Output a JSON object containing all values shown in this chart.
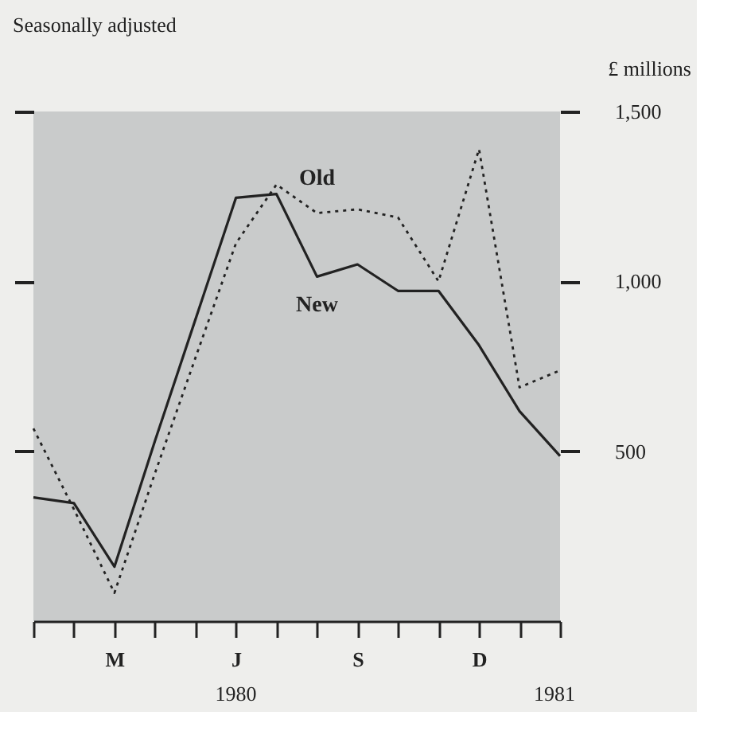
{
  "chart_data": {
    "type": "line",
    "title": "Seasonally adjusted",
    "ylabel": "£ millions",
    "categories": [
      null,
      null,
      "M",
      null,
      null,
      "J",
      null,
      null,
      "S",
      null,
      null,
      "D",
      null,
      null
    ],
    "ylim": [
      0,
      1500
    ],
    "yticks": [
      {
        "value": 500,
        "label": "500"
      },
      {
        "value": 1000,
        "label": "1,000"
      },
      {
        "value": 1500,
        "label": "1,500"
      }
    ],
    "series": [
      {
        "name": "Old",
        "color": "#222222",
        "line_style": "dotted",
        "values": [
          567,
          329,
          83,
          435,
          775,
          1112,
          1285,
          1201,
          1212,
          1188,
          1000,
          1389,
          688,
          738
        ]
      },
      {
        "name": "New",
        "color": "#222222",
        "line_style": "solid",
        "values": [
          364,
          347,
          160,
          530,
          888,
          1246,
          1257,
          1014,
          1050,
          972,
          972,
          812,
          618,
          486
        ]
      }
    ],
    "annotations": [
      "1980",
      "1981"
    ],
    "grid": false,
    "marker": "none"
  }
}
